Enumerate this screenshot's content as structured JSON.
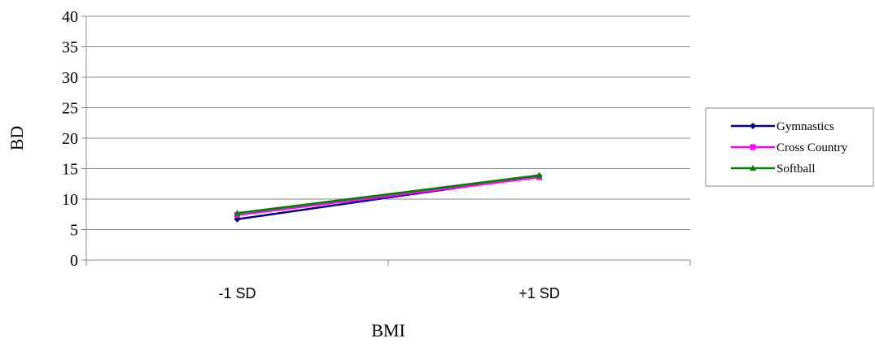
{
  "chart_data": {
    "type": "line",
    "categories": [
      "-1 SD",
      "+1 SD"
    ],
    "series": [
      {
        "name": "Gymnastics",
        "values": [
          6.7,
          13.8
        ],
        "color": "#000080",
        "marker": "diamond"
      },
      {
        "name": "Cross Country",
        "values": [
          7.4,
          13.6
        ],
        "color": "#FF00FF",
        "marker": "square"
      },
      {
        "name": "Softball",
        "values": [
          7.7,
          13.9
        ],
        "color": "#008000",
        "marker": "triangle"
      }
    ],
    "title": "",
    "xlabel": "BMI",
    "ylabel": "BD",
    "ylim": [
      0,
      40
    ],
    "yticks": [
      0,
      5,
      10,
      15,
      20,
      25,
      30,
      35,
      40
    ],
    "grid": true,
    "legend_position": "right"
  }
}
